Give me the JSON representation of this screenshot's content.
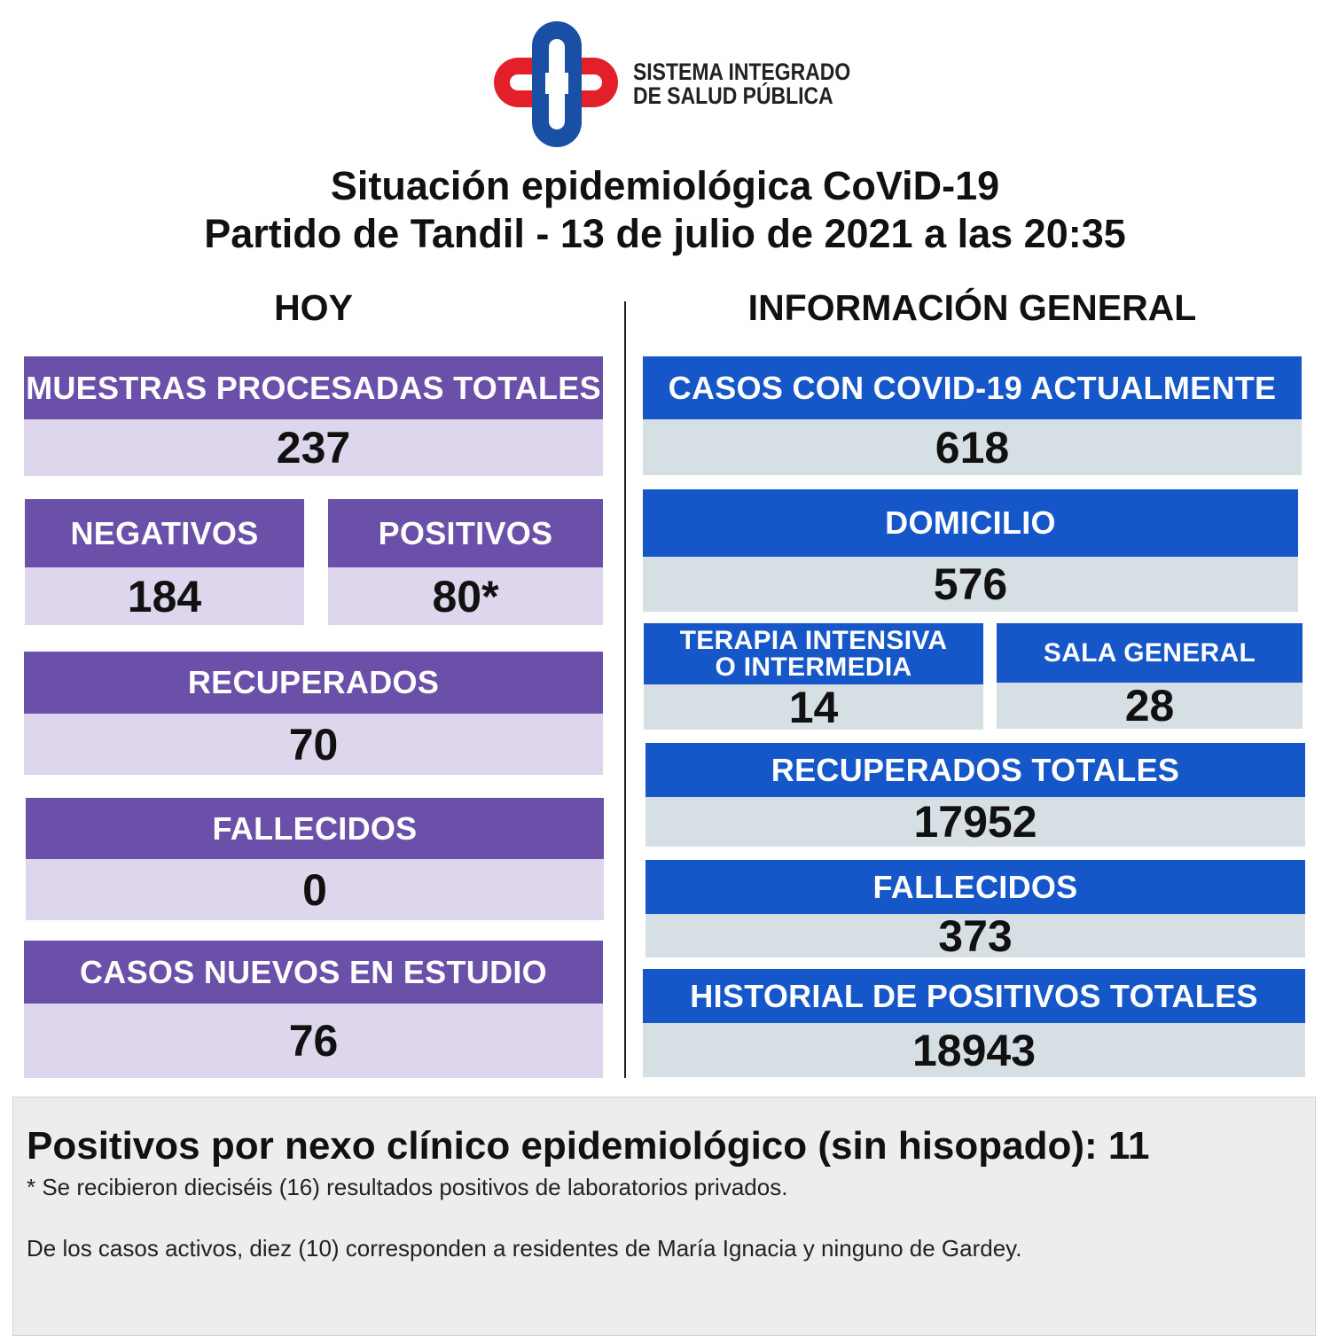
{
  "logo": {
    "line1": "SISTEMA INTEGRADO",
    "line2": "DE SALUD PÚBLICA",
    "colors": {
      "blue": "#1a4fa6",
      "red": "#e3202a"
    }
  },
  "title": {
    "line1": "Situación epidemiológica CoViD-19",
    "line2": "Partido de Tandil - 13 de julio de 2021 a las 20:35"
  },
  "today": {
    "heading": "HOY",
    "muestras": {
      "label": "MUESTRAS PROCESADAS TOTALES",
      "value": "237"
    },
    "negativos": {
      "label": "NEGATIVOS",
      "value": "184"
    },
    "positivos": {
      "label": "POSITIVOS",
      "value": "80*"
    },
    "recuperados": {
      "label": "RECUPERADOS",
      "value": "70"
    },
    "fallecidos": {
      "label": "FALLECIDOS",
      "value": "0"
    },
    "nuevos_estudio": {
      "label": "CASOS NUEVOS EN ESTUDIO",
      "value": "76"
    }
  },
  "general": {
    "heading": "INFORMACIÓN GENERAL",
    "activos": {
      "label": "CASOS CON COVID-19 ACTUALMENTE",
      "value": "618"
    },
    "domicilio": {
      "label": "DOMICILIO",
      "value": "576"
    },
    "terapia": {
      "label": "TERAPIA INTENSIVA O INTERMEDIA",
      "value": "14"
    },
    "sala": {
      "label": "SALA GENERAL",
      "value": "28"
    },
    "recuperados_totales": {
      "label": "RECUPERADOS TOTALES",
      "value": "17952"
    },
    "fallecidos": {
      "label": "FALLECIDOS",
      "value": "373"
    },
    "historial": {
      "label": "HISTORIAL DE POSITIVOS TOTALES",
      "value": "18943"
    }
  },
  "footer": {
    "nexo": "Positivos por nexo clínico epidemiológico (sin hisopado): 11",
    "note": "* Se recibieron dieciséis (16) resultados positivos de laboratorios privados.",
    "activos_note": "De los casos activos, diez (10) corresponden a residentes de María Ignacia y ninguno de Gardey."
  },
  "colors": {
    "purple_header": "#6a50a8",
    "purple_value": "#ddd6ec",
    "blue_header": "#1557c9",
    "blue_value": "#d6dfe3"
  }
}
